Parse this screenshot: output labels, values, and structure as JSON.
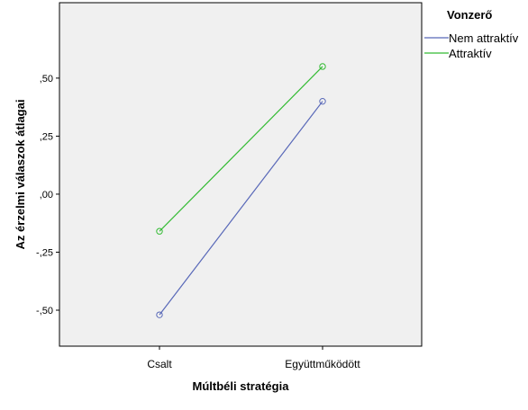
{
  "chart_data": {
    "type": "line",
    "categories": [
      "Csalt",
      "Együttműködött"
    ],
    "series": [
      {
        "name": "Nem attraktív",
        "values": [
          -0.52,
          0.4
        ],
        "color": "#5868b8"
      },
      {
        "name": "Attraktív",
        "values": [
          -0.16,
          0.55
        ],
        "color": "#33bb33"
      }
    ],
    "xlabel": "Múltbéli stratégia",
    "ylabel": "Az érzelmi válaszok átlagai",
    "yticks": [
      {
        "value": 0.5,
        "label": ",50"
      },
      {
        "value": 0.25,
        "label": ",25"
      },
      {
        "value": 0.0,
        "label": ",00"
      },
      {
        "value": -0.25,
        "label": "-,25"
      },
      {
        "value": -0.5,
        "label": "-,50"
      }
    ],
    "ylim": [
      -0.655,
      0.825
    ],
    "legend": {
      "title": "Vonzerő",
      "placement": "right"
    },
    "plot_background": "#f0f0f0",
    "grid": false,
    "markers": "open-circle"
  }
}
